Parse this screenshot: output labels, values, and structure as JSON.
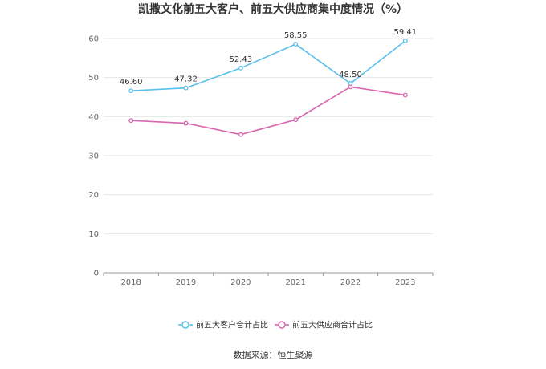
{
  "chart_data": {
    "type": "line",
    "title": "凯撒文化前五大客户、前五大供应商集中度情况（%）",
    "categories": [
      "2018",
      "2019",
      "2020",
      "2021",
      "2022",
      "2023"
    ],
    "yticks": [
      "0",
      "10",
      "20",
      "30",
      "40",
      "50",
      "60"
    ],
    "ylim": [
      0,
      60
    ],
    "grid": true,
    "legend_position": "bottom",
    "series": [
      {
        "name": "前五大客户合计占比",
        "color": "#5bc0eb",
        "values": [
          46.6,
          47.32,
          52.43,
          58.55,
          48.5,
          59.41
        ],
        "labels": [
          "46.60",
          "47.32",
          "52.43",
          "58.55",
          "48.50",
          "59.41"
        ]
      },
      {
        "name": "前五大供应商合计占比",
        "color": "#d966b0",
        "values": [
          39.0,
          38.3,
          35.4,
          39.2,
          47.6,
          45.5
        ]
      }
    ]
  },
  "source": "数据来源：恒生聚源"
}
